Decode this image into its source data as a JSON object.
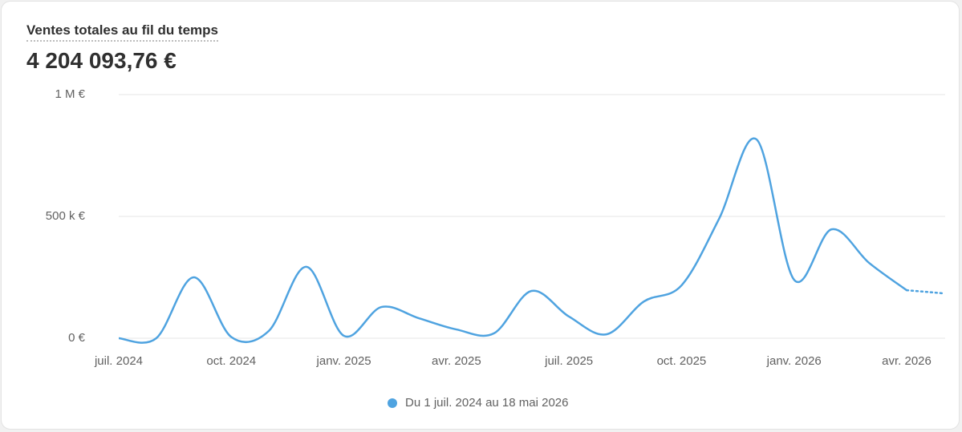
{
  "header": {
    "title": "Ventes totales au fil du temps",
    "total": "4 204 093,76 €"
  },
  "chart_data": {
    "type": "line",
    "categories": [
      "juil. 2024",
      null,
      null,
      "oct. 2024",
      null,
      null,
      "janv. 2025",
      null,
      null,
      "avr. 2025",
      null,
      null,
      "juil. 2025",
      null,
      null,
      "oct. 2025",
      null,
      null,
      "janv. 2026",
      null,
      null,
      "avr. 2026",
      null
    ],
    "series": [
      {
        "name": "Du 1 juil. 2024 au 18 mai 2026",
        "color": "#4fa3e0",
        "values": [
          0,
          0,
          250000,
          5000,
          30000,
          293000,
          10000,
          128000,
          82000,
          36000,
          20000,
          194000,
          89000,
          16000,
          151000,
          217000,
          490000,
          816000,
          240000,
          447000,
          309000,
          197000,
          184000
        ]
      }
    ],
    "ylim": [
      0,
      1000000
    ],
    "yticks": [
      {
        "value": 0,
        "label": "0 €"
      },
      {
        "value": 500000,
        "label": "500 k €"
      },
      {
        "value": 1000000,
        "label": "1 M €"
      }
    ],
    "grid": true,
    "partial_last": true
  }
}
